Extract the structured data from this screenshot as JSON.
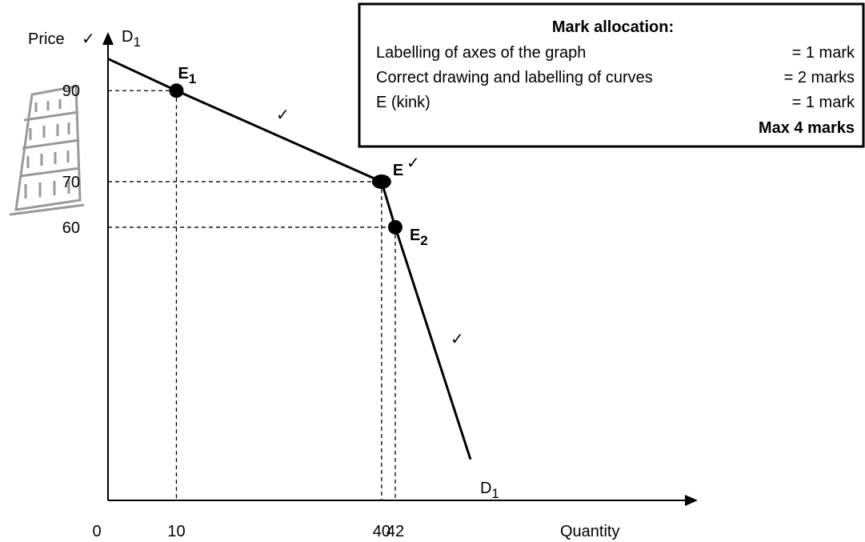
{
  "chart_data": {
    "type": "line",
    "y_label": "Price",
    "x_label": "Quantity",
    "x": [
      0,
      10,
      40,
      42,
      53
    ],
    "values": [
      97,
      90,
      70,
      60,
      9
    ],
    "color": "#000000",
    "point_labels": [
      null,
      {
        "base": "E",
        "sub": "1"
      },
      {
        "base": "E"
      },
      {
        "base": "E",
        "sub": "2"
      },
      null
    ],
    "curve_labels": [
      {
        "base": "D",
        "sub": "1"
      },
      {
        "base": "D",
        "sub": "1"
      }
    ],
    "check_marks": [
      "✓",
      "✓",
      "✓",
      "✓"
    ],
    "xlim": [
      0,
      86
    ],
    "ylim": [
      0,
      102
    ],
    "xticks": [
      0,
      10,
      40,
      42
    ],
    "yticks": [
      60,
      70,
      90
    ],
    "mark_allocation": {
      "title": "Mark allocation:",
      "rows": [
        [
          "Labelling of axes of the graph",
          "= 1 mark"
        ],
        [
          "Correct drawing and labelling of curves",
          "= 2 marks"
        ],
        [
          "E (kink)",
          "= 1 mark"
        ]
      ],
      "total": "Max 4 marks"
    }
  }
}
